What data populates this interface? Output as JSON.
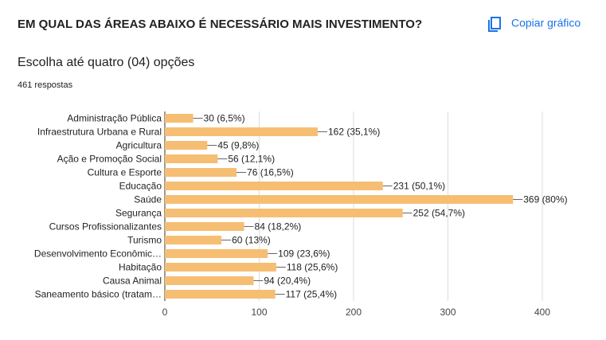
{
  "toolbar": {
    "copy_button": "Copiar gráfico"
  },
  "chart_data": {
    "type": "barh",
    "title": "EM QUAL DAS ÁREAS ABAIXO É NECESSÁRIO MAIS INVESTIMENTO?",
    "subtitle": "Escolha até quatro (04) opções",
    "responses": "461 respostas",
    "categories": [
      "Administração Pública",
      "Infraestrutura Urbana e Rural",
      "Agricultura",
      "Ação e Promoção Social",
      "Cultura e Esporte",
      "Educação",
      "Saúde",
      "Segurança",
      "Cursos Profissionalizantes",
      "Turismo",
      "Desenvolvimento Econômic…",
      "Habitação",
      "Causa Animal",
      "Saneamento básico (tratam…"
    ],
    "values": [
      30,
      162,
      45,
      56,
      76,
      231,
      369,
      252,
      84,
      60,
      109,
      118,
      94,
      117
    ],
    "value_labels": [
      "30 (6,5%)",
      "162 (35,1%)",
      "45 (9,8%)",
      "56 (12,1%)",
      "76 (16,5%)",
      "231 (50,1%)",
      "369 (80%)",
      "252 (54,7%)",
      "84 (18,2%)",
      "60 (13%)",
      "109 (23,6%)",
      "118 (25,6%)",
      "94 (20,4%)",
      "117 (25,4%)"
    ],
    "color": "#f6be73",
    "xlim": [
      0,
      400
    ],
    "xticks": [
      0,
      100,
      200,
      300,
      400
    ],
    "grid": true
  }
}
